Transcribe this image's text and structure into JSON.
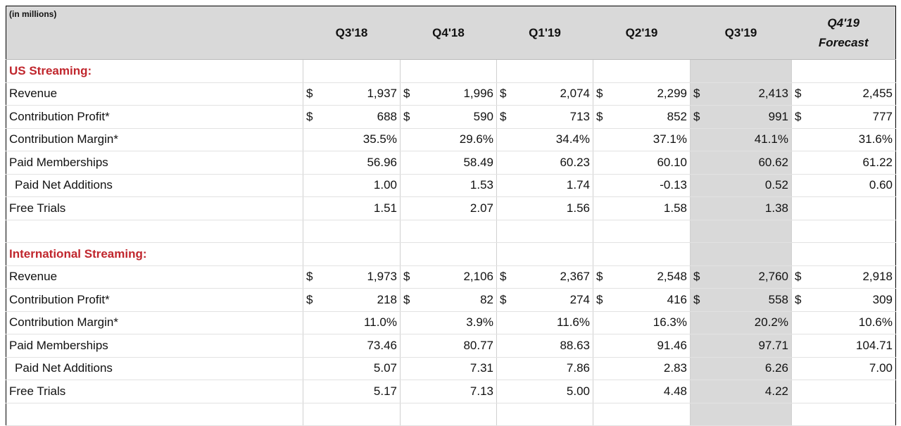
{
  "header": {
    "note": "(in millions)",
    "columns": [
      {
        "label": "Q3'18"
      },
      {
        "label": "Q4'18"
      },
      {
        "label": "Q1'19"
      },
      {
        "label": "Q2'19"
      },
      {
        "label": "Q3'19"
      },
      {
        "label": "Q4'19",
        "sublabel": "Forecast"
      }
    ]
  },
  "sections": [
    {
      "title": "US Streaming:",
      "rows": [
        {
          "label": "Revenue",
          "prefix": "$",
          "values": [
            "1,937",
            "1,996",
            "2,074",
            "2,299",
            "2,413",
            "2,455"
          ]
        },
        {
          "label": "Contribution Profit*",
          "prefix": "$",
          "values": [
            "688",
            "590",
            "713",
            "852",
            "991",
            "777"
          ]
        },
        {
          "label": "Contribution Margin*",
          "values": [
            "35.5%",
            "29.6%",
            "34.4%",
            "37.1%",
            "41.1%",
            "31.6%"
          ]
        },
        {
          "label": "Paid Memberships",
          "values": [
            "56.96",
            "58.49",
            "60.23",
            "60.10",
            "60.62",
            "61.22"
          ]
        },
        {
          "label": "Paid Net Additions",
          "level": 1,
          "values": [
            "1.00",
            "1.53",
            "1.74",
            "-0.13",
            "0.52",
            "0.60"
          ]
        },
        {
          "label": "Free Trials",
          "values": [
            "1.51",
            "2.07",
            "1.56",
            "1.58",
            "1.38"
          ]
        }
      ]
    },
    {
      "title": "International Streaming:",
      "rows": [
        {
          "label": "Revenue",
          "prefix": "$",
          "values": [
            "1,973",
            "2,106",
            "2,367",
            "2,548",
            "2,760",
            "2,918"
          ]
        },
        {
          "label": "Contribution Profit*",
          "prefix": "$",
          "values": [
            "218",
            "82",
            "274",
            "416",
            "558",
            "309"
          ]
        },
        {
          "label": "Contribution Margin*",
          "values": [
            "11.0%",
            "3.9%",
            "11.6%",
            "16.3%",
            "20.2%",
            "10.6%"
          ]
        },
        {
          "label": "Paid Memberships",
          "values": [
            "73.46",
            "80.77",
            "88.63",
            "91.46",
            "97.71",
            "104.71"
          ]
        },
        {
          "label": "Paid Net Additions",
          "level": 1,
          "values": [
            "5.07",
            "7.31",
            "7.86",
            "2.83",
            "6.26",
            "7.00"
          ]
        },
        {
          "label": "Free Trials",
          "values": [
            "5.17",
            "7.13",
            "5.00",
            "4.48",
            "4.22"
          ]
        }
      ]
    }
  ]
}
